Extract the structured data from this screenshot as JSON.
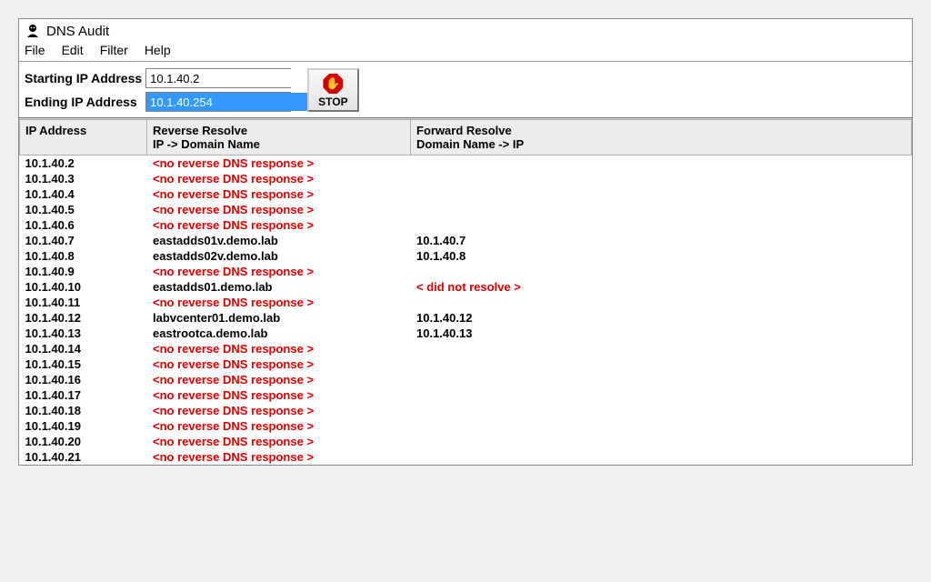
{
  "window": {
    "title": "DNS Audit"
  },
  "menu": {
    "file": "File",
    "edit": "Edit",
    "filter": "Filter",
    "help": "Help"
  },
  "toolbar": {
    "start_label": "Starting IP Address",
    "end_label": "Ending IP Address",
    "start_value": "10.1.40.2",
    "end_value": "10.1.40.254",
    "stop_label": "STOP"
  },
  "columns": {
    "ip": "IP Address",
    "rev_title": "Reverse Resolve",
    "rev_sub": "IP -> Domain Name",
    "fwd_title": "Forward Resolve",
    "fwd_sub": "Domain Name -> IP"
  },
  "no_reverse_text": "<no reverse DNS response >",
  "did_not_resolve_text": "< did not resolve >",
  "rows": [
    {
      "ip": "10.1.40.2",
      "rev": null,
      "fwd": null
    },
    {
      "ip": "10.1.40.3",
      "rev": null,
      "fwd": null
    },
    {
      "ip": "10.1.40.4",
      "rev": null,
      "fwd": null
    },
    {
      "ip": "10.1.40.5",
      "rev": null,
      "fwd": null
    },
    {
      "ip": "10.1.40.6",
      "rev": null,
      "fwd": null
    },
    {
      "ip": "10.1.40.7",
      "rev": "eastadds01v.demo.lab",
      "fwd": "10.1.40.7"
    },
    {
      "ip": "10.1.40.8",
      "rev": "eastadds02v.demo.lab",
      "fwd": "10.1.40.8"
    },
    {
      "ip": "10.1.40.9",
      "rev": null,
      "fwd": null
    },
    {
      "ip": "10.1.40.10",
      "rev": "eastadds01.demo.lab",
      "fwd": "DID_NOT_RESOLVE"
    },
    {
      "ip": "10.1.40.11",
      "rev": null,
      "fwd": null
    },
    {
      "ip": "10.1.40.12",
      "rev": "labvcenter01.demo.lab",
      "fwd": "10.1.40.12"
    },
    {
      "ip": "10.1.40.13",
      "rev": "eastrootca.demo.lab",
      "fwd": "10.1.40.13"
    },
    {
      "ip": "10.1.40.14",
      "rev": null,
      "fwd": null
    },
    {
      "ip": "10.1.40.15",
      "rev": null,
      "fwd": null
    },
    {
      "ip": "10.1.40.16",
      "rev": null,
      "fwd": null
    },
    {
      "ip": "10.1.40.17",
      "rev": null,
      "fwd": null
    },
    {
      "ip": "10.1.40.18",
      "rev": null,
      "fwd": null
    },
    {
      "ip": "10.1.40.19",
      "rev": null,
      "fwd": null
    },
    {
      "ip": "10.1.40.20",
      "rev": null,
      "fwd": null
    },
    {
      "ip": "10.1.40.21",
      "rev": null,
      "fwd": null
    }
  ],
  "colors": {
    "error_text": "#e00000",
    "header_bg": "#ececec",
    "border": "#b0b0b0",
    "selection": "#3399ff"
  }
}
